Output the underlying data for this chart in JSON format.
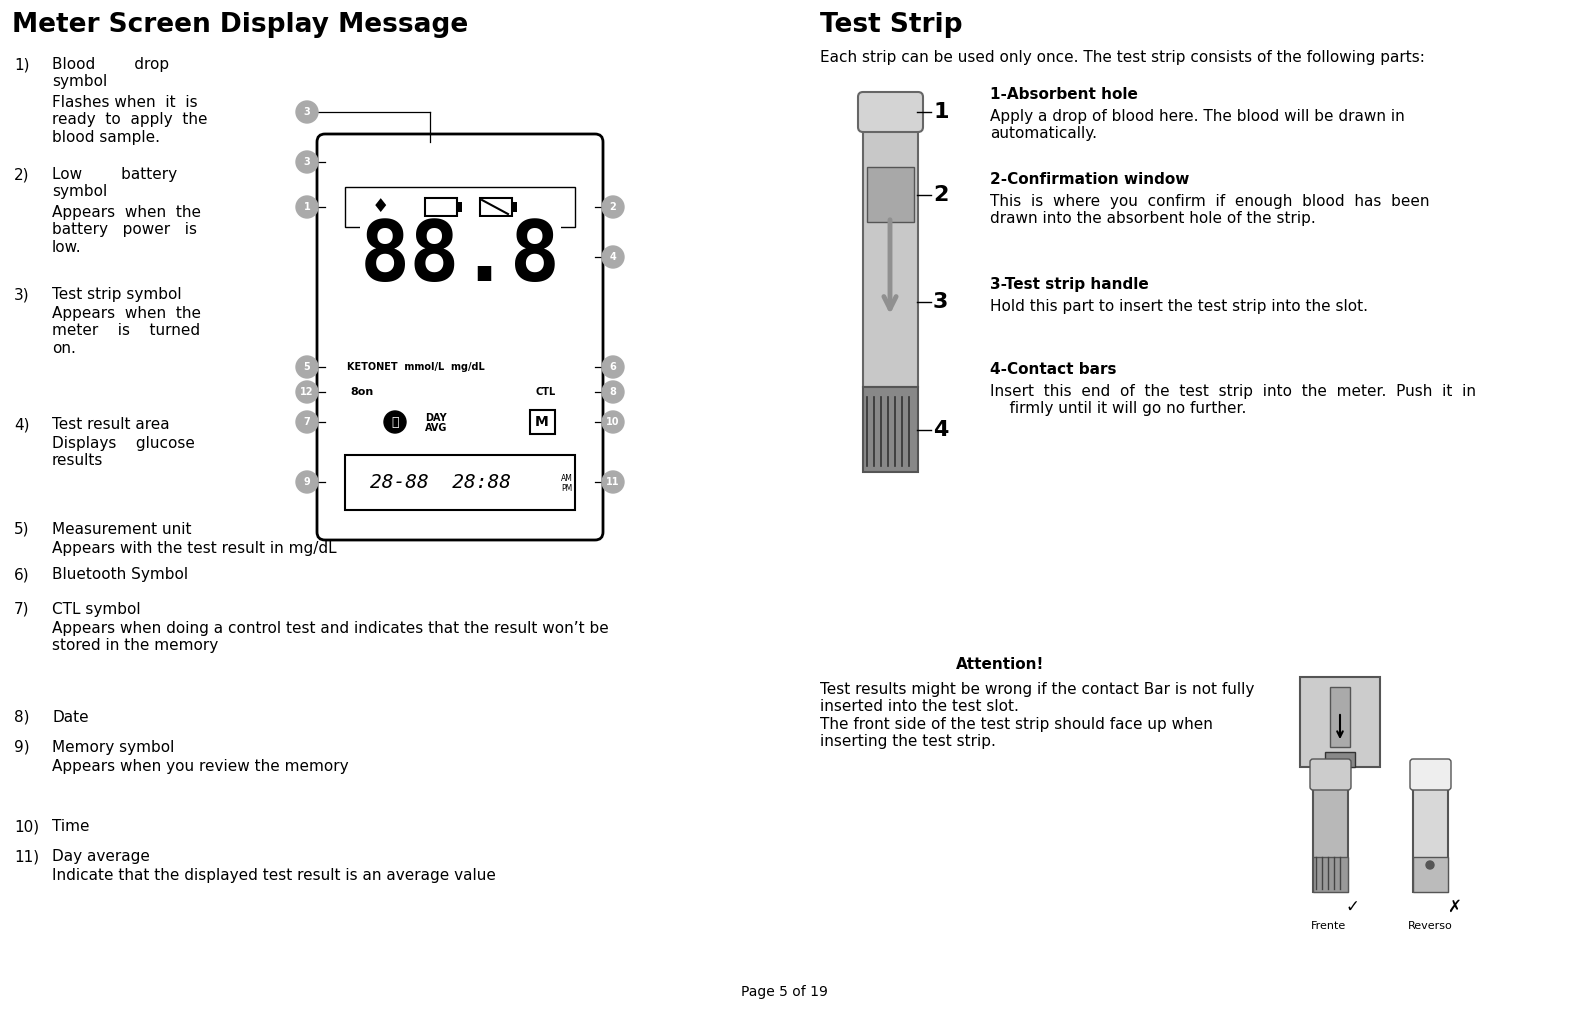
{
  "title_left": "Meter Screen Display Message",
  "title_right": "Test Strip",
  "bg_color": "#ffffff",
  "text_color": "#000000",
  "footer": "Page 5 of 19",
  "left_items": [
    [
      "1)",
      "Blood        drop\nsymbol",
      "Flashes when  it  is\nready  to  apply  the\nblood sample."
    ],
    [
      "2)",
      "Low        battery\nsymbol",
      "Appears  when  the\nbattery   power   is\nlow."
    ],
    [
      "3)",
      "Test strip symbol",
      "Appears  when  the\nmeter    is    turned\non."
    ],
    [
      "4)",
      "Test result area",
      "Displays    glucose\nresults"
    ],
    [
      "5)",
      "Measurement unit",
      "Appears with the test result in mg/dL"
    ],
    [
      "6)",
      "Bluetooth Symbol",
      ""
    ],
    [
      "7)",
      "CTL symbol",
      "Appears when doing a control test and indicates that the result won’t be\nstored in the memory"
    ],
    [
      "8)",
      "Date",
      ""
    ],
    [
      "9)",
      "Memory symbol",
      "Appears when you review the memory"
    ],
    [
      "10)",
      "Time",
      ""
    ],
    [
      "11)",
      "Day average",
      "Indicate that the displayed test result is an average value"
    ]
  ],
  "right_intro": "Each strip can be used only once. The test strip consists of the following parts:",
  "right_items": [
    [
      "1-",
      "Absorbent hole",
      "Apply a drop of blood here. The blood will be drawn in\nautomatically."
    ],
    [
      "2-",
      "Confirmation window",
      "This  is  where  you  confirm  if  enough  blood  has  been\ndrawn into the absorbent hole of the strip."
    ],
    [
      "3-",
      "Test strip handle",
      "Hold this part to insert the test strip into the slot."
    ],
    [
      "4-",
      "Contact bars",
      "Insert  this  end  of  the  test  strip  into  the  meter.  Push  it  in\n    firmly until it will go no further."
    ]
  ],
  "attention_title": "Attention!",
  "attention_text": "Test results might be wrong if the contact Bar is not fully\ninserted into the test slot.\nThe front side of the test strip should face up when\ninserting the test strip."
}
